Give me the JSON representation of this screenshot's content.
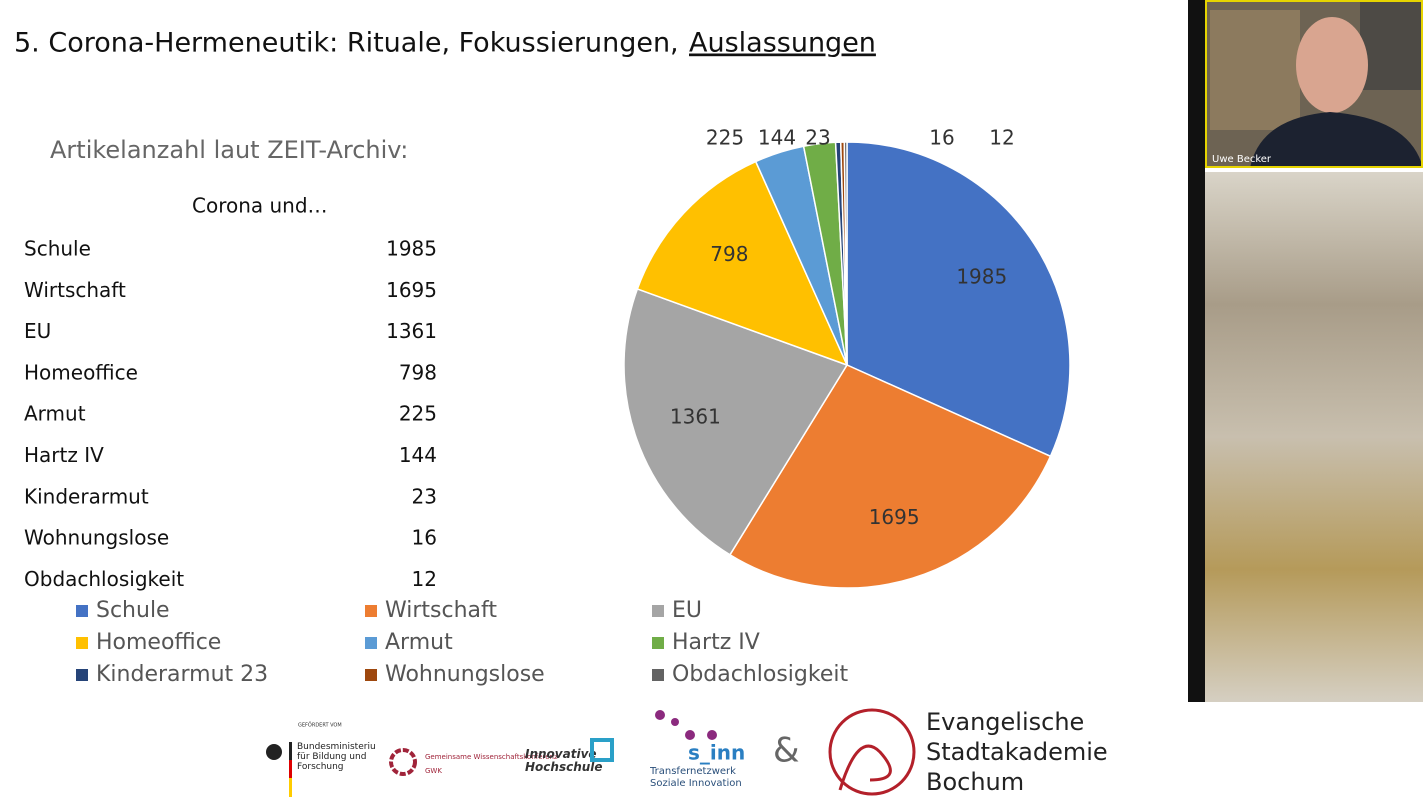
{
  "slide": {
    "title": "5. Corona-Hermeneutik: Rituale, Fokussierungen,",
    "title_emphasis": "Auslassungen",
    "subtitle": "Artikelanzahl laut ZEIT-Archiv:",
    "table": {
      "header": "Corona und…",
      "rows": [
        [
          "Schule",
          1985
        ],
        [
          "Wirtschaft",
          1695
        ],
        [
          "EU",
          1361
        ],
        [
          "Homeoffice",
          798
        ],
        [
          "Armut",
          225
        ],
        [
          "Hartz IV",
          144
        ],
        [
          "Kinderarmut",
          23
        ],
        [
          "Wohnungslose",
          16
        ],
        [
          "Obdachlosigkeit",
          12
        ]
      ]
    }
  },
  "chart_data": {
    "type": "pie",
    "categories": [
      "Schule",
      "Wirtschaft",
      "EU",
      "Homeoffice",
      "Armut",
      "Hartz IV",
      "Kinderarmut 23",
      "Wohnungslose",
      "Obdachlosigkeit"
    ],
    "values": [
      1985,
      1695,
      1361,
      798,
      225,
      144,
      23,
      16,
      12
    ],
    "colors": [
      "#4472c4",
      "#ed7d31",
      "#a5a5a5",
      "#ffc000",
      "#5b9bd5",
      "#70ad47",
      "#264478",
      "#9e480e",
      "#636363"
    ]
  },
  "footer": {
    "funder_note": "GEFÖRDERT VOM",
    "bmbf": "Bundesministerium für Bildung und Forschung",
    "gwk": "Gemeinsame Wissenschaftskonferenz",
    "gwk_short": "GWK",
    "ih": "Innovative Hochschule",
    "sinn": "s_inn",
    "sinn_sub": "Transfernetzwerk Soziale Innovation",
    "amp": "&",
    "esb": [
      "Evangelische",
      "Stadtakademie",
      "Bochum"
    ]
  },
  "participant": {
    "name": "Uwe Becker"
  }
}
